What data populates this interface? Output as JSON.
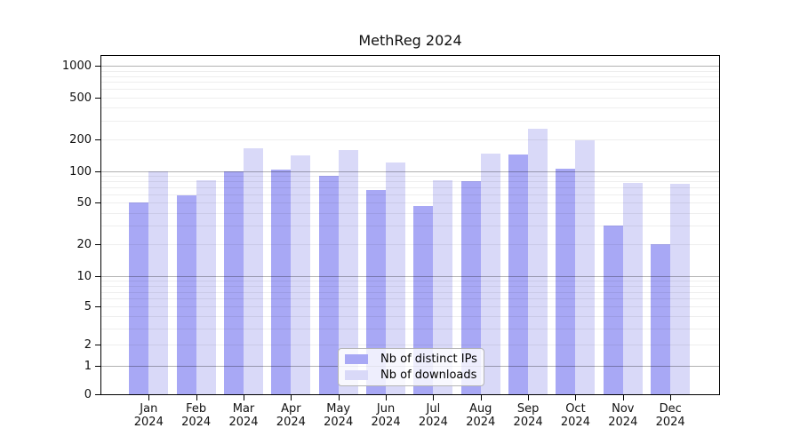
{
  "chart_data": {
    "type": "bar",
    "title": "MethReg 2024",
    "categories": [
      "Jan 2024",
      "Feb 2024",
      "Mar 2024",
      "Apr 2024",
      "May 2024",
      "Jun 2024",
      "Jul 2024",
      "Aug 2024",
      "Sep 2024",
      "Oct 2024",
      "Nov 2024",
      "Dec 2024"
    ],
    "series": [
      {
        "name": "Nb of distinct IPs",
        "color": "#a8a8f5",
        "values": [
          50,
          59,
          100,
          104,
          90,
          66,
          46,
          80,
          143,
          105,
          30,
          20
        ]
      },
      {
        "name": "Nb of downloads",
        "color": "#d9d9f8",
        "values": [
          100,
          82,
          164,
          141,
          159,
          120,
          82,
          147,
          252,
          196,
          77,
          76
        ]
      }
    ],
    "yscale": "symlog",
    "ylim": [
      0,
      1000
    ],
    "ytick_values": [
      0,
      1,
      2,
      5,
      10,
      20,
      50,
      100,
      200,
      500,
      1000
    ],
    "ytick_labels": [
      "0",
      "1",
      "2",
      "5",
      "10",
      "20",
      "50",
      "100",
      "200",
      "500",
      "1000"
    ],
    "minor_gridline_values": [
      2,
      3,
      4,
      5,
      6,
      7,
      8,
      9,
      20,
      30,
      40,
      50,
      60,
      70,
      80,
      90,
      200,
      300,
      400,
      500,
      600,
      700,
      800,
      900
    ],
    "major_gridline_values": [
      1,
      10,
      100,
      1000
    ],
    "grid": true,
    "legend_position": "lower center",
    "colors": {
      "axis": "#000000",
      "major_grid": "#b3b3b3",
      "minor_grid": "#eeeeee",
      "title_text": "#111111"
    }
  }
}
